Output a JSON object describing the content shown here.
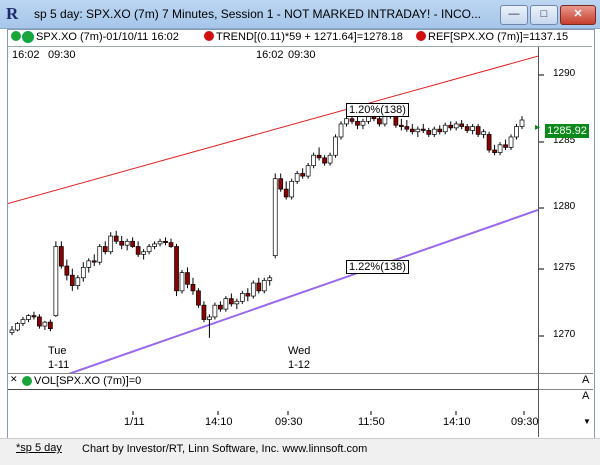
{
  "window": {
    "title": "sp 5 day: SPX.XO (7m) 7 Minutes, Session 1 - NOT MARKED INTRADAY! - INCO...",
    "minimize": "—",
    "maximize": "□",
    "close": "✕"
  },
  "header": {
    "symbol": "SPX.XO (7m)-01/10/11 16:02",
    "trend": "TREND[(0.11)*59 + 1271.64]=1278.18",
    "ref": "REF[SPX.XO (7m)]=1137.15",
    "colors": {
      "green_dot": "#1aa43a",
      "red_dot": "#d01010"
    }
  },
  "time_markers": {
    "t1a": "16:02",
    "t1b": "09:30",
    "t2a": "16:02",
    "t2b": "09:30"
  },
  "day_labels": [
    {
      "day": "Tue",
      "date": "1-11"
    },
    {
      "day": "Wed",
      "date": "1-12"
    }
  ],
  "price_axis": {
    "ticks": [
      "1290",
      "1285",
      "1280",
      "1275",
      "1270"
    ],
    "last_price": "1285.92",
    "last_price_color": "#0b8a1a"
  },
  "annotations": {
    "upper": "1.20%(138)",
    "lower": "1.22%(138)"
  },
  "volume": {
    "label": "VOL[SPX.XO (7m)]=0"
  },
  "side_marks": {
    "a_top": "A",
    "a_bottom": "A",
    "menu": "▼"
  },
  "time_axis": {
    "ticks": [
      "1/11",
      "14:10",
      "09:30",
      "11:50",
      "14:10",
      "09:30"
    ]
  },
  "footer": {
    "tab": "*sp 5 day",
    "credit": "Chart by Investor/RT, Linn Software, Inc. www.linnsoft.com"
  },
  "chart_data": {
    "type": "candlestick",
    "ylim": [
      1266.5,
      1291.5
    ],
    "trendlines": [
      {
        "color": "#e02020",
        "start": 1279.5,
        "end": 1290.8
      },
      {
        "color": "#9966ee",
        "start": 1264.8,
        "end": 1279.0
      }
    ],
    "candles": [
      [
        1269.6,
        1270.1,
        1269.4,
        1269.8
      ],
      [
        1269.8,
        1270.4,
        1269.7,
        1270.3
      ],
      [
        1270.3,
        1270.8,
        1270.1,
        1270.6
      ],
      [
        1270.6,
        1271.0,
        1270.4,
        1270.9
      ],
      [
        1270.9,
        1271.2,
        1270.6,
        1270.8
      ],
      [
        1270.8,
        1271.0,
        1269.9,
        1270.1
      ],
      [
        1270.1,
        1270.5,
        1269.8,
        1270.4
      ],
      [
        1270.4,
        1270.6,
        1269.7,
        1269.9
      ],
      [
        1270.9,
        1276.6,
        1270.8,
        1276.2
      ],
      [
        1276.2,
        1276.6,
        1274.5,
        1274.7
      ],
      [
        1274.7,
        1275.2,
        1273.6,
        1274.0
      ],
      [
        1274.0,
        1274.5,
        1272.8,
        1273.2
      ],
      [
        1273.2,
        1274.0,
        1272.9,
        1273.8
      ],
      [
        1273.8,
        1275.0,
        1273.5,
        1274.6
      ],
      [
        1274.6,
        1275.3,
        1274.2,
        1275.1
      ],
      [
        1275.1,
        1275.6,
        1274.7,
        1275.0
      ],
      [
        1275.0,
        1276.4,
        1274.8,
        1276.2
      ],
      [
        1276.2,
        1276.6,
        1275.6,
        1275.8
      ],
      [
        1275.8,
        1277.3,
        1275.6,
        1277.0
      ],
      [
        1277.0,
        1277.4,
        1276.4,
        1276.6
      ],
      [
        1276.6,
        1277.0,
        1276.0,
        1276.3
      ],
      [
        1276.3,
        1276.8,
        1275.9,
        1276.6
      ],
      [
        1276.6,
        1276.9,
        1276.1,
        1276.2
      ],
      [
        1276.2,
        1276.6,
        1275.4,
        1275.6
      ],
      [
        1275.6,
        1276.0,
        1275.2,
        1275.8
      ],
      [
        1275.8,
        1276.4,
        1275.6,
        1276.2
      ],
      [
        1276.2,
        1276.6,
        1276.0,
        1276.4
      ],
      [
        1276.4,
        1276.8,
        1276.2,
        1276.6
      ],
      [
        1276.6,
        1276.9,
        1276.3,
        1276.5
      ],
      [
        1276.5,
        1276.8,
        1276.1,
        1276.2
      ],
      [
        1276.2,
        1276.4,
        1272.4,
        1272.8
      ],
      [
        1272.8,
        1274.4,
        1272.6,
        1274.2
      ],
      [
        1274.2,
        1274.6,
        1273.0,
        1273.3
      ],
      [
        1273.3,
        1273.8,
        1272.5,
        1272.8
      ],
      [
        1272.8,
        1273.0,
        1271.5,
        1271.7
      ],
      [
        1271.7,
        1272.0,
        1270.4,
        1270.6
      ],
      [
        1270.6,
        1271.0,
        1269.2,
        1270.8
      ],
      [
        1270.8,
        1271.9,
        1270.6,
        1271.7
      ],
      [
        1271.7,
        1272.0,
        1271.2,
        1271.4
      ],
      [
        1271.4,
        1272.4,
        1271.2,
        1272.2
      ],
      [
        1272.2,
        1272.6,
        1271.6,
        1271.8
      ],
      [
        1271.8,
        1272.2,
        1271.4,
        1272.0
      ],
      [
        1272.0,
        1272.8,
        1271.8,
        1272.6
      ],
      [
        1272.6,
        1273.0,
        1272.0,
        1272.4
      ],
      [
        1272.4,
        1273.6,
        1272.2,
        1273.4
      ],
      [
        1273.4,
        1273.8,
        1272.6,
        1272.8
      ],
      [
        1272.8,
        1273.8,
        1272.6,
        1273.6
      ],
      [
        1273.6,
        1274.0,
        1273.2,
        1273.8
      ],
      [
        1275.5,
        1281.8,
        1275.3,
        1281.4
      ],
      [
        1281.4,
        1281.8,
        1280.4,
        1280.6
      ],
      [
        1280.6,
        1281.2,
        1279.8,
        1280.0
      ],
      [
        1280.0,
        1281.4,
        1279.8,
        1281.2
      ],
      [
        1281.2,
        1282.0,
        1281.0,
        1281.8
      ],
      [
        1281.8,
        1282.2,
        1281.4,
        1281.6
      ],
      [
        1281.6,
        1282.6,
        1281.4,
        1282.4
      ],
      [
        1282.4,
        1283.4,
        1282.2,
        1283.2
      ],
      [
        1283.2,
        1283.8,
        1282.8,
        1283.0
      ],
      [
        1283.0,
        1283.2,
        1282.4,
        1282.6
      ],
      [
        1282.6,
        1283.4,
        1282.4,
        1283.2
      ],
      [
        1283.2,
        1284.8,
        1283.0,
        1284.6
      ],
      [
        1284.6,
        1285.8,
        1284.4,
        1285.6
      ],
      [
        1285.6,
        1286.2,
        1285.4,
        1286.0
      ],
      [
        1286.0,
        1286.4,
        1285.6,
        1285.8
      ],
      [
        1285.8,
        1286.2,
        1285.2,
        1285.5
      ],
      [
        1285.5,
        1286.0,
        1285.2,
        1285.8
      ],
      [
        1285.8,
        1286.4,
        1285.6,
        1286.2
      ],
      [
        1286.2,
        1286.5,
        1285.8,
        1286.0
      ],
      [
        1286.0,
        1286.3,
        1285.4,
        1285.6
      ],
      [
        1285.6,
        1286.8,
        1285.4,
        1286.6
      ],
      [
        1286.6,
        1287.0,
        1286.0,
        1286.2
      ],
      [
        1286.2,
        1286.4,
        1285.3,
        1285.5
      ],
      [
        1285.5,
        1286.0,
        1285.1,
        1285.4
      ],
      [
        1285.4,
        1285.9,
        1285.0,
        1285.2
      ],
      [
        1285.2,
        1285.6,
        1284.8,
        1285.0
      ],
      [
        1285.0,
        1285.4,
        1284.6,
        1285.2
      ],
      [
        1285.2,
        1285.6,
        1284.9,
        1285.1
      ],
      [
        1285.1,
        1285.3,
        1284.6,
        1284.8
      ],
      [
        1284.8,
        1285.4,
        1284.6,
        1285.2
      ],
      [
        1285.2,
        1285.5,
        1284.8,
        1285.0
      ],
      [
        1285.0,
        1285.7,
        1284.8,
        1285.5
      ],
      [
        1285.5,
        1285.8,
        1285.1,
        1285.3
      ],
      [
        1285.3,
        1285.8,
        1285.1,
        1285.6
      ],
      [
        1285.6,
        1285.9,
        1285.2,
        1285.4
      ],
      [
        1285.4,
        1285.6,
        1284.9,
        1285.1
      ],
      [
        1285.1,
        1285.6,
        1284.8,
        1285.4
      ],
      [
        1285.4,
        1285.6,
        1284.6,
        1284.8
      ],
      [
        1284.8,
        1285.2,
        1284.5,
        1285.0
      ],
      [
        1284.8,
        1285.0,
        1283.4,
        1283.6
      ],
      [
        1283.6,
        1284.0,
        1283.2,
        1283.4
      ],
      [
        1283.4,
        1284.2,
        1283.2,
        1284.0
      ],
      [
        1284.0,
        1284.4,
        1283.6,
        1283.8
      ],
      [
        1283.8,
        1284.8,
        1283.6,
        1284.6
      ],
      [
        1284.6,
        1285.6,
        1284.4,
        1285.4
      ],
      [
        1285.4,
        1286.2,
        1285.2,
        1285.9
      ]
    ]
  }
}
